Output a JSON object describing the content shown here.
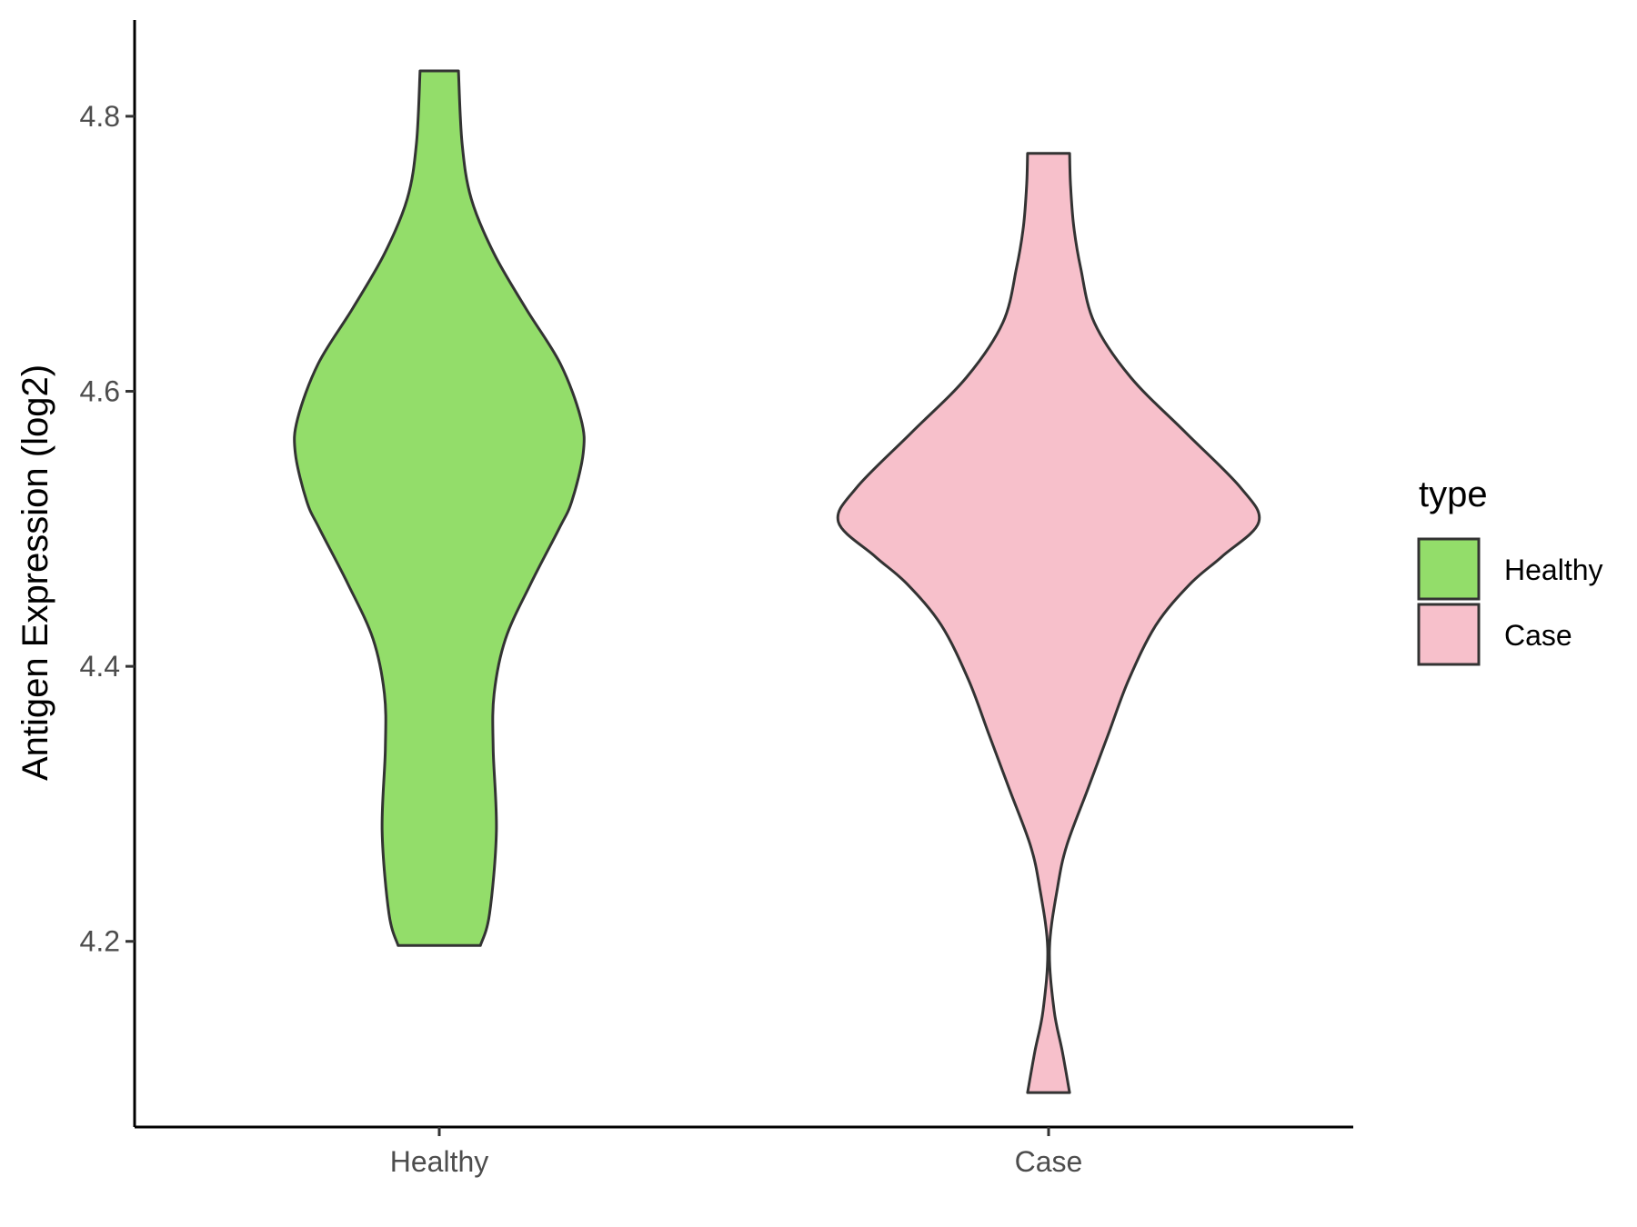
{
  "chart_data": {
    "type": "violin",
    "xlabel": "",
    "ylabel": "Antigen Expression (log2)",
    "categories": [
      "Healthy",
      "Case"
    ],
    "ylim": [
      4.065,
      4.87
    ],
    "yticks": [
      4.2,
      4.4,
      4.6,
      4.8
    ],
    "ytick_labels": [
      "4.2",
      "4.4",
      "4.6",
      "4.8"
    ],
    "grid": false,
    "series": [
      {
        "category": "Healthy",
        "color": "#93dd6a",
        "min": 4.197,
        "max": 4.833,
        "density_profile": [
          {
            "y": 4.197,
            "half_width": 0.09
          },
          {
            "y": 4.22,
            "half_width": 0.11
          },
          {
            "y": 4.28,
            "half_width": 0.125
          },
          {
            "y": 4.34,
            "half_width": 0.118
          },
          {
            "y": 4.38,
            "half_width": 0.12
          },
          {
            "y": 4.42,
            "half_width": 0.145
          },
          {
            "y": 4.46,
            "half_width": 0.2
          },
          {
            "y": 4.5,
            "half_width": 0.262
          },
          {
            "y": 4.52,
            "half_width": 0.29
          },
          {
            "y": 4.555,
            "half_width": 0.315
          },
          {
            "y": 4.58,
            "half_width": 0.31
          },
          {
            "y": 4.62,
            "half_width": 0.265
          },
          {
            "y": 4.66,
            "half_width": 0.19
          },
          {
            "y": 4.7,
            "half_width": 0.12
          },
          {
            "y": 4.74,
            "half_width": 0.07
          },
          {
            "y": 4.78,
            "half_width": 0.05
          },
          {
            "y": 4.833,
            "half_width": 0.042
          }
        ]
      },
      {
        "category": "Case",
        "color": "#f7c0cb",
        "min": 4.09,
        "max": 4.773,
        "density_profile": [
          {
            "y": 4.09,
            "half_width": 0.046
          },
          {
            "y": 4.12,
            "half_width": 0.03
          },
          {
            "y": 4.15,
            "half_width": 0.012
          },
          {
            "y": 4.195,
            "half_width": 0.002
          },
          {
            "y": 4.24,
            "half_width": 0.02
          },
          {
            "y": 4.27,
            "half_width": 0.04
          },
          {
            "y": 4.31,
            "half_width": 0.085
          },
          {
            "y": 4.35,
            "half_width": 0.13
          },
          {
            "y": 4.39,
            "half_width": 0.175
          },
          {
            "y": 4.43,
            "half_width": 0.235
          },
          {
            "y": 4.46,
            "half_width": 0.31
          },
          {
            "y": 4.48,
            "half_width": 0.38
          },
          {
            "y": 4.505,
            "half_width": 0.46
          },
          {
            "y": 4.53,
            "half_width": 0.42
          },
          {
            "y": 4.57,
            "half_width": 0.3
          },
          {
            "y": 4.61,
            "half_width": 0.18
          },
          {
            "y": 4.65,
            "half_width": 0.1
          },
          {
            "y": 4.69,
            "half_width": 0.07
          },
          {
            "y": 4.72,
            "half_width": 0.055
          },
          {
            "y": 4.75,
            "half_width": 0.048
          },
          {
            "y": 4.773,
            "half_width": 0.046
          }
        ]
      }
    ],
    "legend": {
      "title": "type",
      "position": "right",
      "entries": [
        {
          "label": "Healthy",
          "color": "#93dd6a"
        },
        {
          "label": "Case",
          "color": "#f7c0cb"
        }
      ]
    }
  }
}
